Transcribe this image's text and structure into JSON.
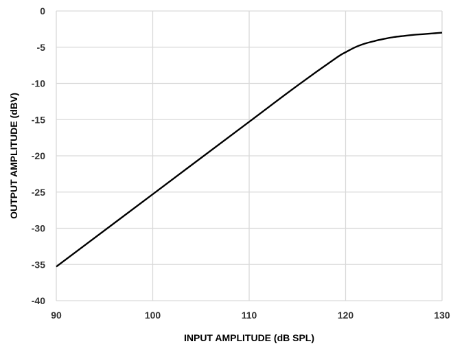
{
  "chart_data": {
    "type": "line",
    "title": "",
    "xlabel": "INPUT AMPLITUDE (dB SPL)",
    "ylabel": "OUTPUT AMPLITUDE (dBV)",
    "xlim": [
      90,
      130
    ],
    "ylim": [
      -40,
      0
    ],
    "xticks": [
      90,
      100,
      110,
      120,
      130
    ],
    "yticks": [
      0,
      -5,
      -10,
      -15,
      -20,
      -25,
      -30,
      -35,
      -40
    ],
    "grid": true,
    "legend": "none",
    "line_color": "#000000",
    "grid_color": "#d9d9d9",
    "series": [
      {
        "x": [
          90,
          100,
          110,
          115,
          119,
          120,
          121,
          122,
          123,
          124,
          125,
          126,
          127,
          128,
          129,
          130
        ],
        "y": [
          -35.3,
          -25.3,
          -15.3,
          -10.3,
          -6.5,
          -5.7,
          -5.0,
          -4.5,
          -4.15,
          -3.85,
          -3.6,
          -3.45,
          -3.3,
          -3.2,
          -3.1,
          -3.0
        ]
      }
    ]
  }
}
